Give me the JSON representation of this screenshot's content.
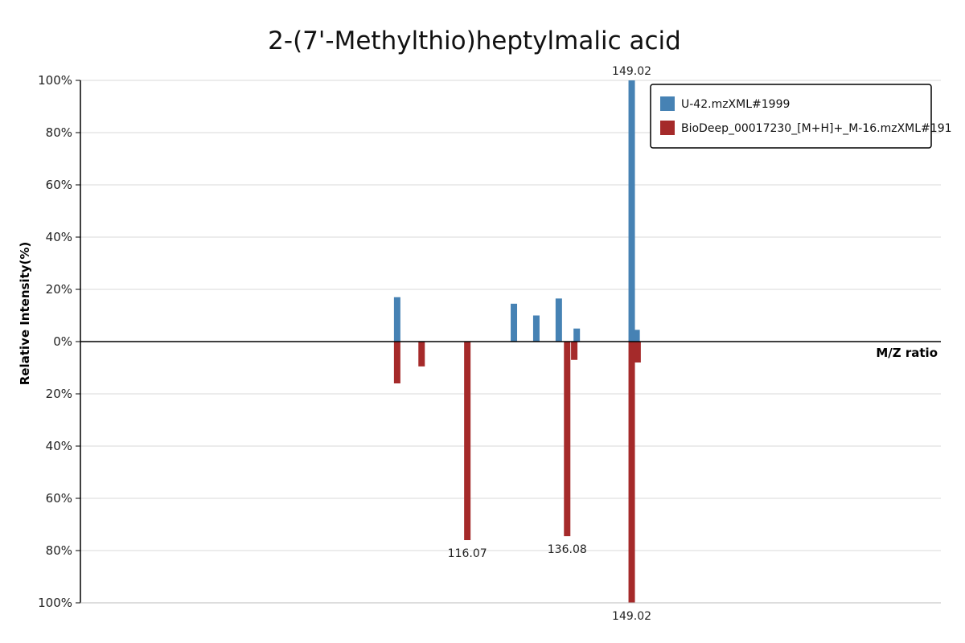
{
  "chart_data": {
    "type": "bar",
    "title": "2-(7'-Methylthio)heptylmalic acid",
    "xlabel": "M/Z ratio",
    "ylabel": "Relative Intensity(%)",
    "ylim": [
      -100,
      100
    ],
    "y_ticks": [
      "100%",
      "80%",
      "60%",
      "40%",
      "20%",
      "0%",
      "20%",
      "40%",
      "60%",
      "80%",
      "100%"
    ],
    "grid": true,
    "legend_position": "top-right",
    "series": [
      {
        "name": "U-42.mzXML#1999",
        "color": "#4682b4",
        "direction": "up",
        "peaks": [
          {
            "mz": 102.0,
            "intensity": 17
          },
          {
            "mz": 125.4,
            "intensity": 14.5
          },
          {
            "mz": 129.9,
            "intensity": 10
          },
          {
            "mz": 134.4,
            "intensity": 16.5
          },
          {
            "mz": 138.0,
            "intensity": 5
          },
          {
            "mz": 149.02,
            "intensity": 100,
            "label": "149.02"
          },
          {
            "mz": 150.0,
            "intensity": 4.5
          }
        ]
      },
      {
        "name": "BioDeep_00017230_[M+H]+_M-16.mzXML#191",
        "color": "#a52a2a",
        "direction": "down",
        "peaks": [
          {
            "mz": 102.0,
            "intensity": 16
          },
          {
            "mz": 106.9,
            "intensity": 9.5
          },
          {
            "mz": 116.07,
            "intensity": 76,
            "label": "116.07"
          },
          {
            "mz": 136.08,
            "intensity": 74.5,
            "label": "136.08"
          },
          {
            "mz": 137.5,
            "intensity": 7
          },
          {
            "mz": 149.02,
            "intensity": 100,
            "label": "149.02"
          },
          {
            "mz": 150.2,
            "intensity": 8
          }
        ]
      }
    ]
  }
}
